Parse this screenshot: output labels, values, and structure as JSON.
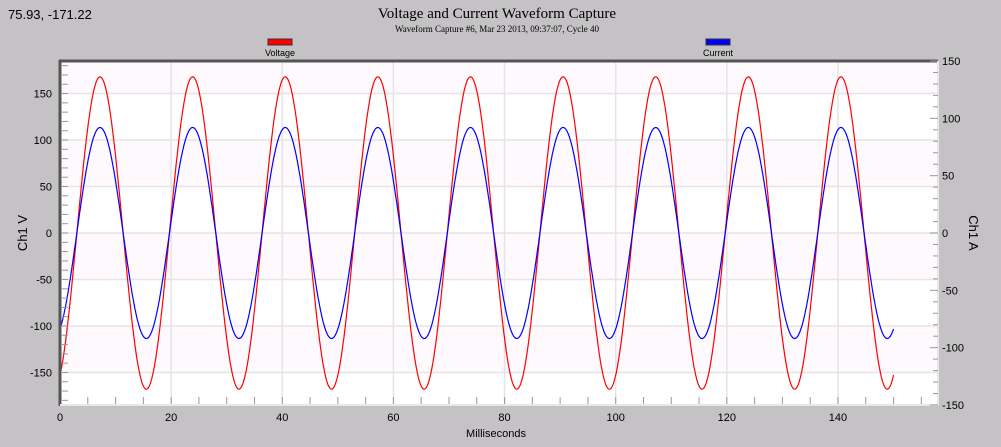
{
  "cursor_readout": "75.93, -171.22",
  "chart_data": {
    "type": "line",
    "title": "Voltage and Current Waveform Capture",
    "subtitle": "Waveform Capture #6, Mar 23 2013, 09:37:07,  Cycle 40",
    "xlabel": "Milliseconds",
    "ylabel_left": "Ch1 V",
    "ylabel_right": "Ch1 A",
    "xlim": [
      0,
      158
    ],
    "ylim_left": [
      -185,
      185
    ],
    "ylim_right": [
      -150,
      150
    ],
    "x_ticks": [
      0,
      20,
      40,
      60,
      80,
      100,
      120,
      140
    ],
    "y_ticks_left": [
      150,
      100,
      50,
      0,
      -50,
      -100,
      -150
    ],
    "y_ticks_right": [
      150,
      100,
      50,
      0,
      -50,
      -100,
      -150
    ],
    "grid": true,
    "legend_position": "top",
    "series": [
      {
        "name": "Voltage",
        "axis": "left",
        "color": "#ff0000",
        "waveform": "sine",
        "peak": 168,
        "frequency_hz": 60,
        "phase_deg": -65.5,
        "x_range": [
          0,
          150
        ]
      },
      {
        "name": "Current",
        "axis": "right",
        "color": "#0000ff",
        "waveform": "sine",
        "peak": 92,
        "frequency_hz": 60,
        "phase_deg": -65.5,
        "x_range": [
          0,
          150
        ]
      }
    ]
  }
}
